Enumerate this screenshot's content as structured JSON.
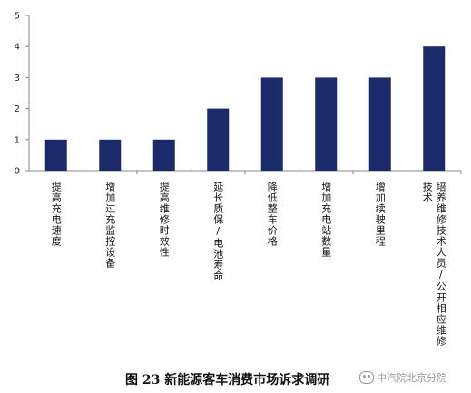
{
  "chart_data": {
    "type": "bar",
    "categories": [
      "提高充电速度",
      "增加过充监控设备",
      "提高维修时效性",
      "延长质保/电池寿命",
      "降低整车价格",
      "增加充电站数量",
      "增加续驶里程",
      "培养维修技术人员/公开相应维修技术"
    ],
    "category_lines": [
      [
        "提高充电速度"
      ],
      [
        "增加过充监控设备"
      ],
      [
        "提高维修时效性"
      ],
      [
        "延长质保/电池寿命"
      ],
      [
        "降低整车价格"
      ],
      [
        "增加充电站数量"
      ],
      [
        "增加续驶里程"
      ],
      [
        "培养维修技术人员/公开相应维修",
        "技术"
      ]
    ],
    "values": [
      1,
      1,
      1,
      2,
      3,
      3,
      3,
      4
    ],
    "ylim": [
      0,
      5
    ],
    "yticks": [
      0,
      1,
      2,
      3,
      4,
      5
    ],
    "grid": false,
    "legend": "none",
    "bar_color": "#1b2a6b",
    "title": "图 23 新能源客车消费市场诉求调研"
  },
  "watermark": {
    "text": "中汽院北京分院",
    "icon": "wechat-icon"
  }
}
